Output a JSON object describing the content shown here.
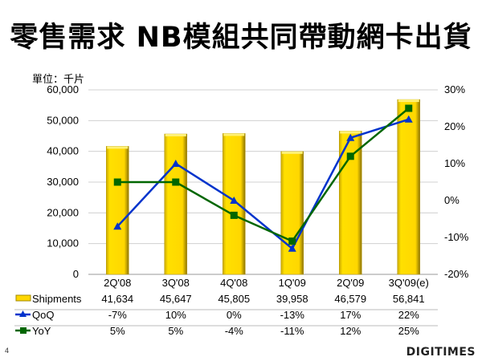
{
  "title": "零售需求 NB模組共同帶動網卡出貨",
  "unit_label": "單位：千片",
  "page_number": "4",
  "logo": "DIGITIMES",
  "chart_data": {
    "type": "bar+line",
    "categories": [
      "2Q'08",
      "3Q'08",
      "4Q'08",
      "1Q'09",
      "2Q'09",
      "3Q'09(e)"
    ],
    "series": [
      {
        "name": "Shipments",
        "type": "bar",
        "axis": "left",
        "color": "#FFD700",
        "values": [
          41634,
          45647,
          45805,
          39958,
          46579,
          56841
        ],
        "labels": [
          "41,634",
          "45,647",
          "45,805",
          "39,958",
          "46,579",
          "56,841"
        ]
      },
      {
        "name": "QoQ",
        "type": "line",
        "axis": "right",
        "color": "#0033CC",
        "marker": "triangle",
        "values": [
          -7,
          10,
          0,
          -13,
          17,
          22
        ],
        "labels": [
          "-7%",
          "10%",
          "0%",
          "-13%",
          "17%",
          "22%"
        ]
      },
      {
        "name": "YoY",
        "type": "line",
        "axis": "right",
        "color": "#006600",
        "marker": "square",
        "values": [
          5,
          5,
          -4,
          -11,
          12,
          25
        ],
        "labels": [
          "5%",
          "5%",
          "-4%",
          "-11%",
          "12%",
          "25%"
        ]
      }
    ],
    "left_axis": {
      "range": [
        0,
        60000
      ],
      "ticks": [
        "0",
        "10,000",
        "20,000",
        "30,000",
        "40,000",
        "50,000",
        "60,000"
      ]
    },
    "right_axis": {
      "range": [
        -20,
        30
      ],
      "ticks": [
        "-20%",
        "-10%",
        "0%",
        "10%",
        "20%",
        "30%"
      ]
    },
    "grid": true,
    "legend": "data table below chart"
  }
}
